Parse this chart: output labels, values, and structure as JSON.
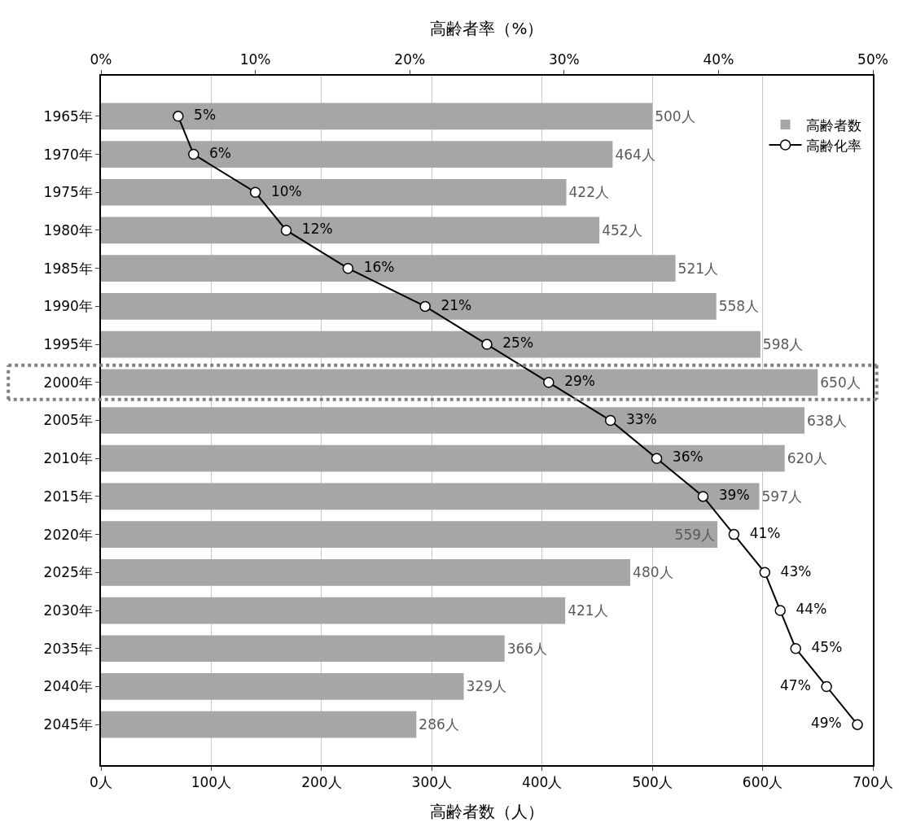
{
  "chart_data": {
    "type": "bar",
    "orientation": "horizontal",
    "xlabel": "高齢者数（人）",
    "x2label": "高齢者率（%）",
    "categories": [
      "1965年",
      "1970年",
      "1975年",
      "1980年",
      "1985年",
      "1990年",
      "1995年",
      "2000年",
      "2005年",
      "2010年",
      "2015年",
      "2020年",
      "2025年",
      "2030年",
      "2035年",
      "2040年",
      "2045年"
    ],
    "series": [
      {
        "name": "高齢者数",
        "color": "#a6a6a6",
        "values": [
          500,
          464,
          422,
          452,
          521,
          558,
          598,
          650,
          638,
          620,
          597,
          559,
          480,
          421,
          366,
          329,
          286
        ],
        "value_labels": [
          "500人",
          "464人",
          "422人",
          "452人",
          "521人",
          "558人",
          "598人",
          "650人",
          "638人",
          "620人",
          "597人",
          "559人",
          "480人",
          "421人",
          "366人",
          "329人",
          "286人"
        ]
      },
      {
        "name": "高齢化率",
        "type": "line",
        "axis": "x2",
        "color": "#000000",
        "marker": "circle",
        "values": [
          5,
          6,
          10,
          12,
          16,
          21,
          25,
          29,
          33,
          36,
          39,
          41,
          43,
          44,
          45,
          47,
          49
        ],
        "value_labels": [
          "5%",
          "6%",
          "10%",
          "12%",
          "16%",
          "21%",
          "25%",
          "29%",
          "33%",
          "36%",
          "39%",
          "41%",
          "43%",
          "44%",
          "45%",
          "47%",
          "49%"
        ]
      }
    ],
    "xlim": [
      0,
      700
    ],
    "xticks": [
      {
        "value": 0,
        "label": "0人"
      },
      {
        "value": 100,
        "label": "100人"
      },
      {
        "value": 200,
        "label": "200人"
      },
      {
        "value": 300,
        "label": "300人"
      },
      {
        "value": 400,
        "label": "400人"
      },
      {
        "value": 500,
        "label": "500人"
      },
      {
        "value": 600,
        "label": "600人"
      },
      {
        "value": 700,
        "label": "700人"
      }
    ],
    "x2lim": [
      0,
      50
    ],
    "x2ticks": [
      {
        "value": 0,
        "label": "0%"
      },
      {
        "value": 10,
        "label": "10%"
      },
      {
        "value": 20,
        "label": "20%"
      },
      {
        "value": 30,
        "label": "30%"
      },
      {
        "value": 40,
        "label": "40%"
      },
      {
        "value": 50,
        "label": "50%"
      }
    ],
    "grid": "x",
    "legend": "top right"
  }
}
